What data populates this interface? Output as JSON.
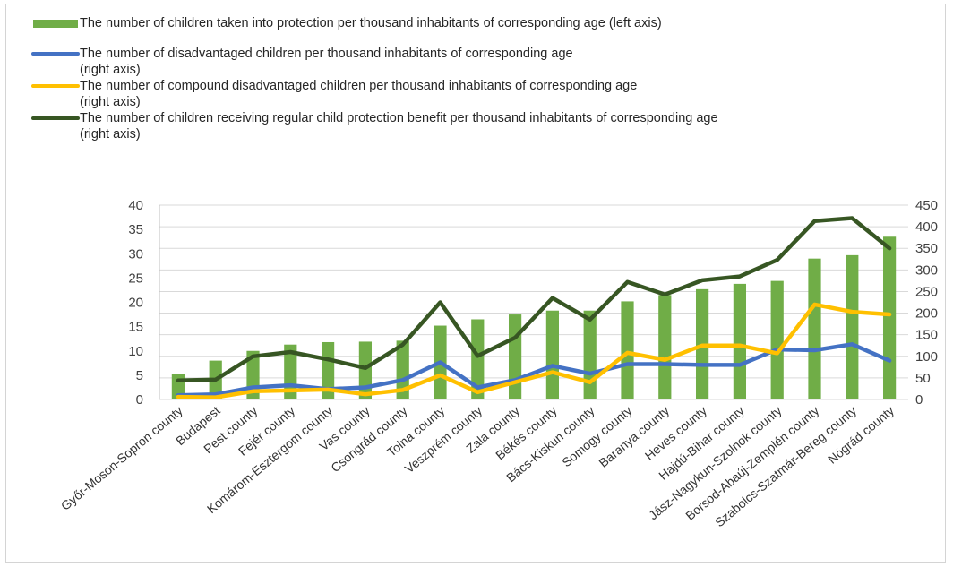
{
  "chart_data": {
    "type": "bar",
    "categories": [
      "Győr-Moson-Sopron county",
      "Budapest",
      "Pest county",
      "Fejér county",
      "Komárom-Esztergom county",
      "Vas county",
      "Csongrád county",
      "Tolna county",
      "Veszprém county",
      "Zala county",
      "Békés county",
      "Bács-Kiskun county",
      "Somogy county",
      "Baranya county",
      "Heves county",
      "Hajdú-Bihar county",
      "Jász-Nagykun-Szolnok county",
      "Borsod-Abaúj-Zemplén county",
      "Szabolcs-Szatmár-Bereg county",
      "Nógrád county"
    ],
    "series": [
      {
        "name": "The number of children taken into protection per thousand inhabitants of corresponding age (left axis)",
        "type": "bar",
        "axis": "left",
        "color": "#70ad47",
        "values": [
          5.3,
          8.0,
          10.0,
          11.3,
          11.8,
          11.9,
          12.1,
          15.2,
          16.5,
          17.5,
          18.3,
          18.3,
          20.2,
          21.5,
          22.7,
          23.8,
          24.4,
          29.0,
          29.7,
          33.5
        ]
      },
      {
        "name": "The number of disadvantaged children per thousand inhabitants of corresponding age",
        "name_suffix": "(right axis)",
        "type": "line",
        "axis": "right",
        "color": "#4472c4",
        "values": [
          10,
          12,
          28,
          33,
          24,
          28,
          45,
          86,
          28,
          45,
          78,
          60,
          82,
          82,
          80,
          80,
          116,
          114,
          128,
          90
        ]
      },
      {
        "name": "The number of compound disadvantaged children per thousand inhabitants of corresponding age",
        "name_suffix": "(right axis)",
        "type": "line",
        "axis": "right",
        "color": "#ffc000",
        "values": [
          6,
          5,
          19,
          21,
          23,
          12,
          22,
          56,
          17,
          40,
          63,
          40,
          108,
          92,
          125,
          125,
          107,
          220,
          203,
          197
        ]
      },
      {
        "name": "The number of children receiving regular child protection benefit per thousand inhabitants of corresponding age",
        "name_suffix": "(right axis)",
        "type": "line",
        "axis": "right",
        "color": "#375623",
        "values": [
          44,
          46,
          100,
          110,
          93,
          73,
          127,
          225,
          101,
          143,
          235,
          185,
          272,
          243,
          276,
          285,
          323,
          413,
          420,
          350
        ]
      }
    ],
    "ylim": [
      0,
      40
    ],
    "y_ticks": [
      "0",
      "5",
      "10",
      "15",
      "20",
      "25",
      "30",
      "35",
      "40"
    ],
    "y2lim": [
      0,
      450
    ],
    "y2_ticks": [
      "0",
      "50",
      "100",
      "150",
      "200",
      "250",
      "300",
      "350",
      "400",
      "450"
    ],
    "grid": true,
    "legend": "top"
  }
}
